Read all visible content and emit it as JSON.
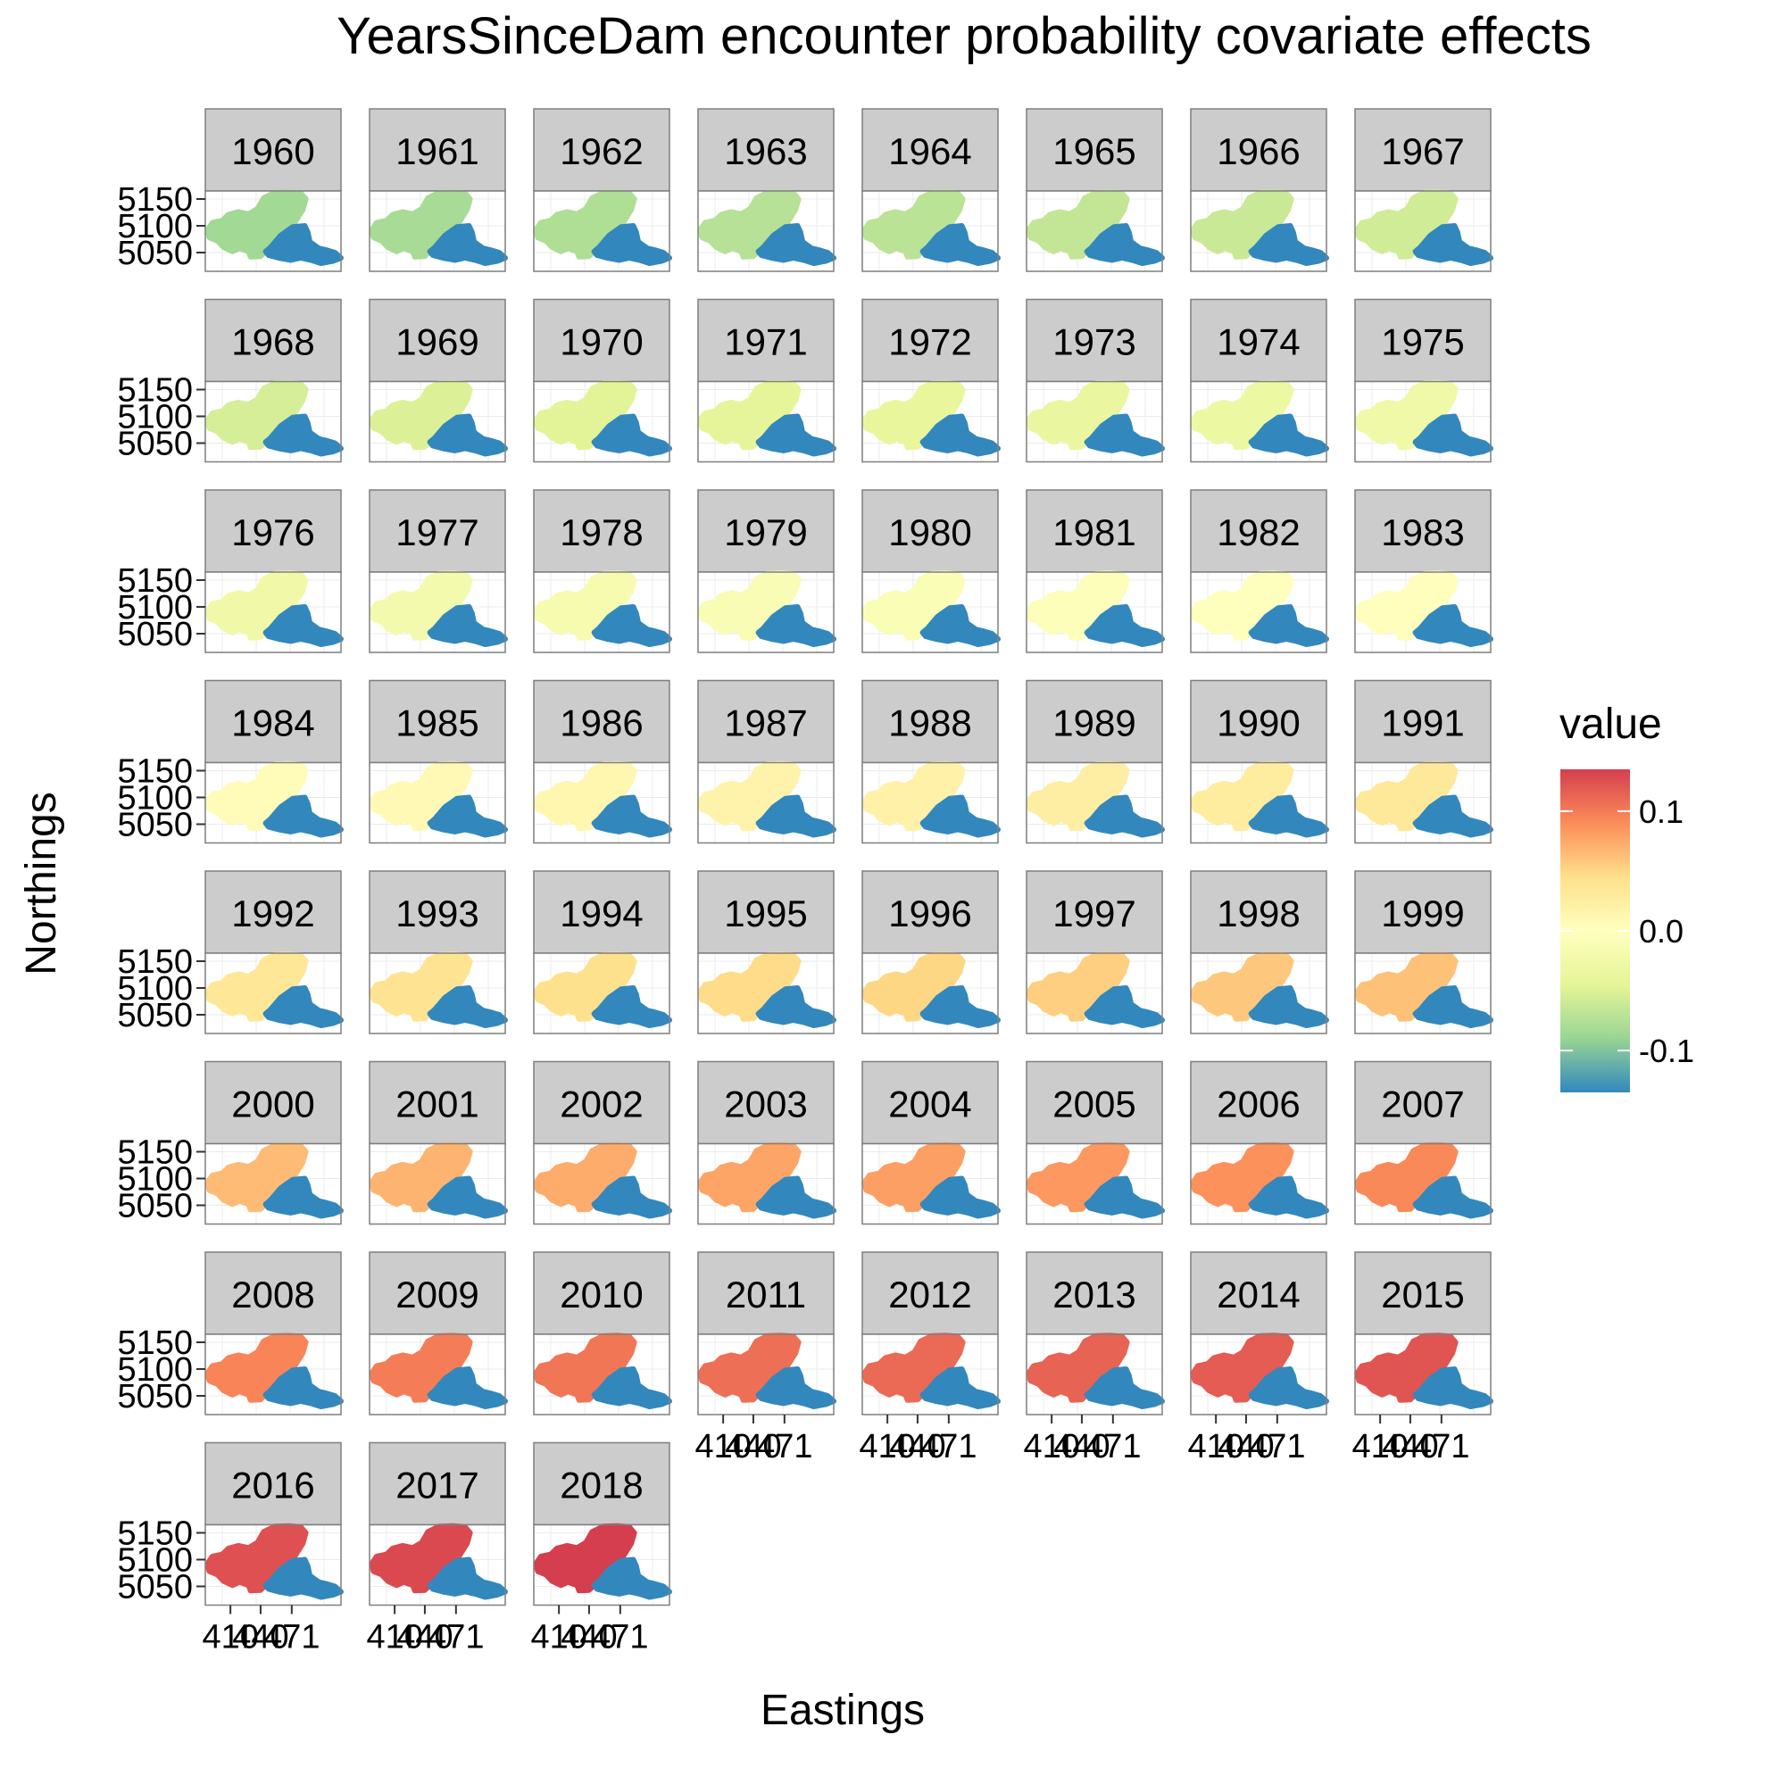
{
  "chart_data": {
    "type": "faceted-map",
    "title": "YearsSinceDam encounter probability covariate effects",
    "xlabel": "Eastings",
    "ylabel": "Northings",
    "facets": [
      "1960",
      "1961",
      "1962",
      "1963",
      "1964",
      "1965",
      "1966",
      "1967",
      "1968",
      "1969",
      "1970",
      "1971",
      "1972",
      "1973",
      "1974",
      "1975",
      "1976",
      "1977",
      "1978",
      "1979",
      "1980",
      "1981",
      "1982",
      "1983",
      "1984",
      "1985",
      "1986",
      "1987",
      "1988",
      "1989",
      "1990",
      "1991",
      "1992",
      "1993",
      "1994",
      "1995",
      "1996",
      "1997",
      "1998",
      "1999",
      "2000",
      "2001",
      "2002",
      "2003",
      "2004",
      "2005",
      "2006",
      "2007",
      "2008",
      "2009",
      "2010",
      "2011",
      "2012",
      "2013",
      "2014",
      "2015",
      "2016",
      "2017",
      "2018"
    ],
    "region_values": {
      "upstream_region": [
        -0.085,
        -0.081,
        -0.077,
        -0.073,
        -0.07,
        -0.066,
        -0.062,
        -0.058,
        -0.055,
        -0.051,
        -0.047,
        -0.043,
        -0.04,
        -0.036,
        -0.032,
        -0.028,
        -0.025,
        -0.021,
        -0.017,
        -0.013,
        -0.01,
        -0.006,
        -0.002,
        0.002,
        0.005,
        0.009,
        0.013,
        0.017,
        0.02,
        0.024,
        0.028,
        0.032,
        0.035,
        0.039,
        0.043,
        0.047,
        0.05,
        0.054,
        0.058,
        0.062,
        0.065,
        0.069,
        0.073,
        0.077,
        0.08,
        0.084,
        0.088,
        0.092,
        0.095,
        0.099,
        0.103,
        0.107,
        0.11,
        0.114,
        0.118,
        0.122,
        0.125,
        0.129,
        0.135
      ],
      "downstream_region_constant": -0.135
    },
    "y_ticks": [
      "5050",
      "5100",
      "5150"
    ],
    "y_tick_values": [
      5050,
      5100,
      5150
    ],
    "y_range": [
      5015,
      5165
    ],
    "x_ticks": [
      "410",
      "440",
      "471"
    ],
    "x_tick_values": [
      410,
      440,
      471
    ],
    "x_range": [
      385,
      520
    ],
    "legend": {
      "title": "value",
      "position": "right",
      "range": [
        -0.135,
        0.135
      ],
      "ticks": [
        {
          "label": "0.1",
          "value": 0.1
        },
        {
          "label": "0.0",
          "value": 0.0
        },
        {
          "label": "-0.1",
          "value": -0.1
        }
      ],
      "palette": [
        "#3288bd",
        "#99d594",
        "#e6f598",
        "#ffffbf",
        "#fee08b",
        "#fc8d59",
        "#d53e4f"
      ]
    },
    "grid": true,
    "strip_fill": "#cccccc"
  }
}
